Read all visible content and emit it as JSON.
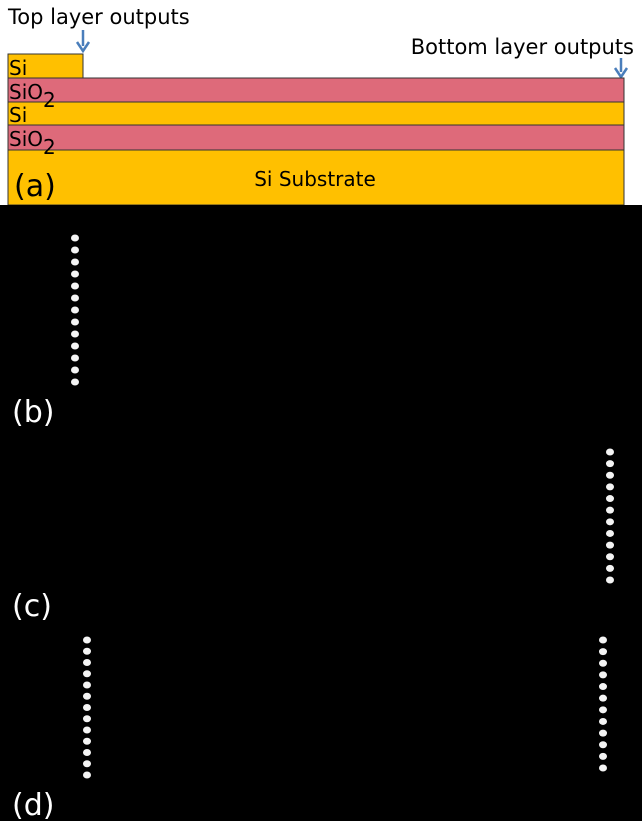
{
  "annotations": {
    "top": "Top layer outputs",
    "bottom": "Bottom layer outputs"
  },
  "layers": [
    {
      "label": "Si"
    },
    {
      "label": "SiO",
      "subscript": "2"
    },
    {
      "label": "Si"
    },
    {
      "label": "SiO",
      "subscript": "2"
    },
    {
      "label": "Si Substrate"
    }
  ],
  "panels": [
    "(a)",
    "(b)",
    "(c)",
    "(d)"
  ]
}
